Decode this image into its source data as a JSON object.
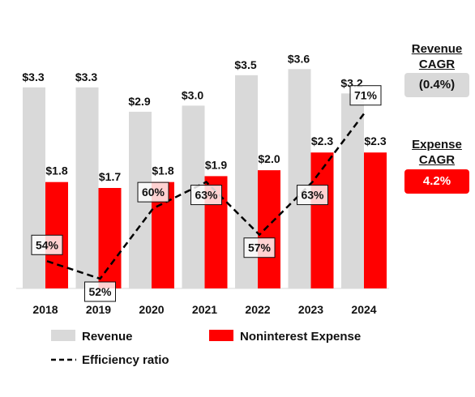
{
  "chart_data": {
    "type": "bar",
    "categories": [
      "2018",
      "2019",
      "2020",
      "2021",
      "2022",
      "2023",
      "2024"
    ],
    "series": [
      {
        "name": "Revenue",
        "kind": "bar",
        "color": "#d9d9d9",
        "values": [
          3.3,
          3.3,
          2.9,
          3.0,
          3.5,
          3.6,
          3.2
        ],
        "labels": [
          "$3.3",
          "$3.3",
          "$2.9",
          "$3.0",
          "$3.5",
          "$3.6",
          "$3.2"
        ]
      },
      {
        "name": "Noninterest Expense",
        "kind": "bar",
        "color": "#ff0000",
        "values": [
          1.8,
          1.7,
          1.8,
          1.9,
          2.0,
          2.3,
          2.3
        ],
        "labels": [
          "$1.8",
          "$1.7",
          "$1.8",
          "$1.9",
          "$2.0",
          "$2.3",
          "$2.3"
        ]
      },
      {
        "name": "Efficiency ratio",
        "kind": "line",
        "style": "dashed",
        "color": "#000000",
        "values": [
          54,
          52,
          60,
          63,
          57,
          63,
          71
        ],
        "labels": [
          "54%",
          "52%",
          "60%",
          "63%",
          "57%",
          "63%",
          "71%"
        ]
      }
    ],
    "bar_ylim": [
      0,
      3.75
    ],
    "line_ylim": [
      45,
      80
    ],
    "legend_position": "bottom"
  },
  "cagr": {
    "revenue": {
      "title_line1": "Revenue",
      "title_line2": "CAGR",
      "value": "(0.4%)",
      "bg": "#d9d9d9",
      "text_color": "#111111"
    },
    "expense": {
      "title_line1": "Expense",
      "title_line2": "CAGR",
      "value": "4.2%",
      "bg": "#ff0000",
      "text_color": "#ffffff"
    }
  }
}
